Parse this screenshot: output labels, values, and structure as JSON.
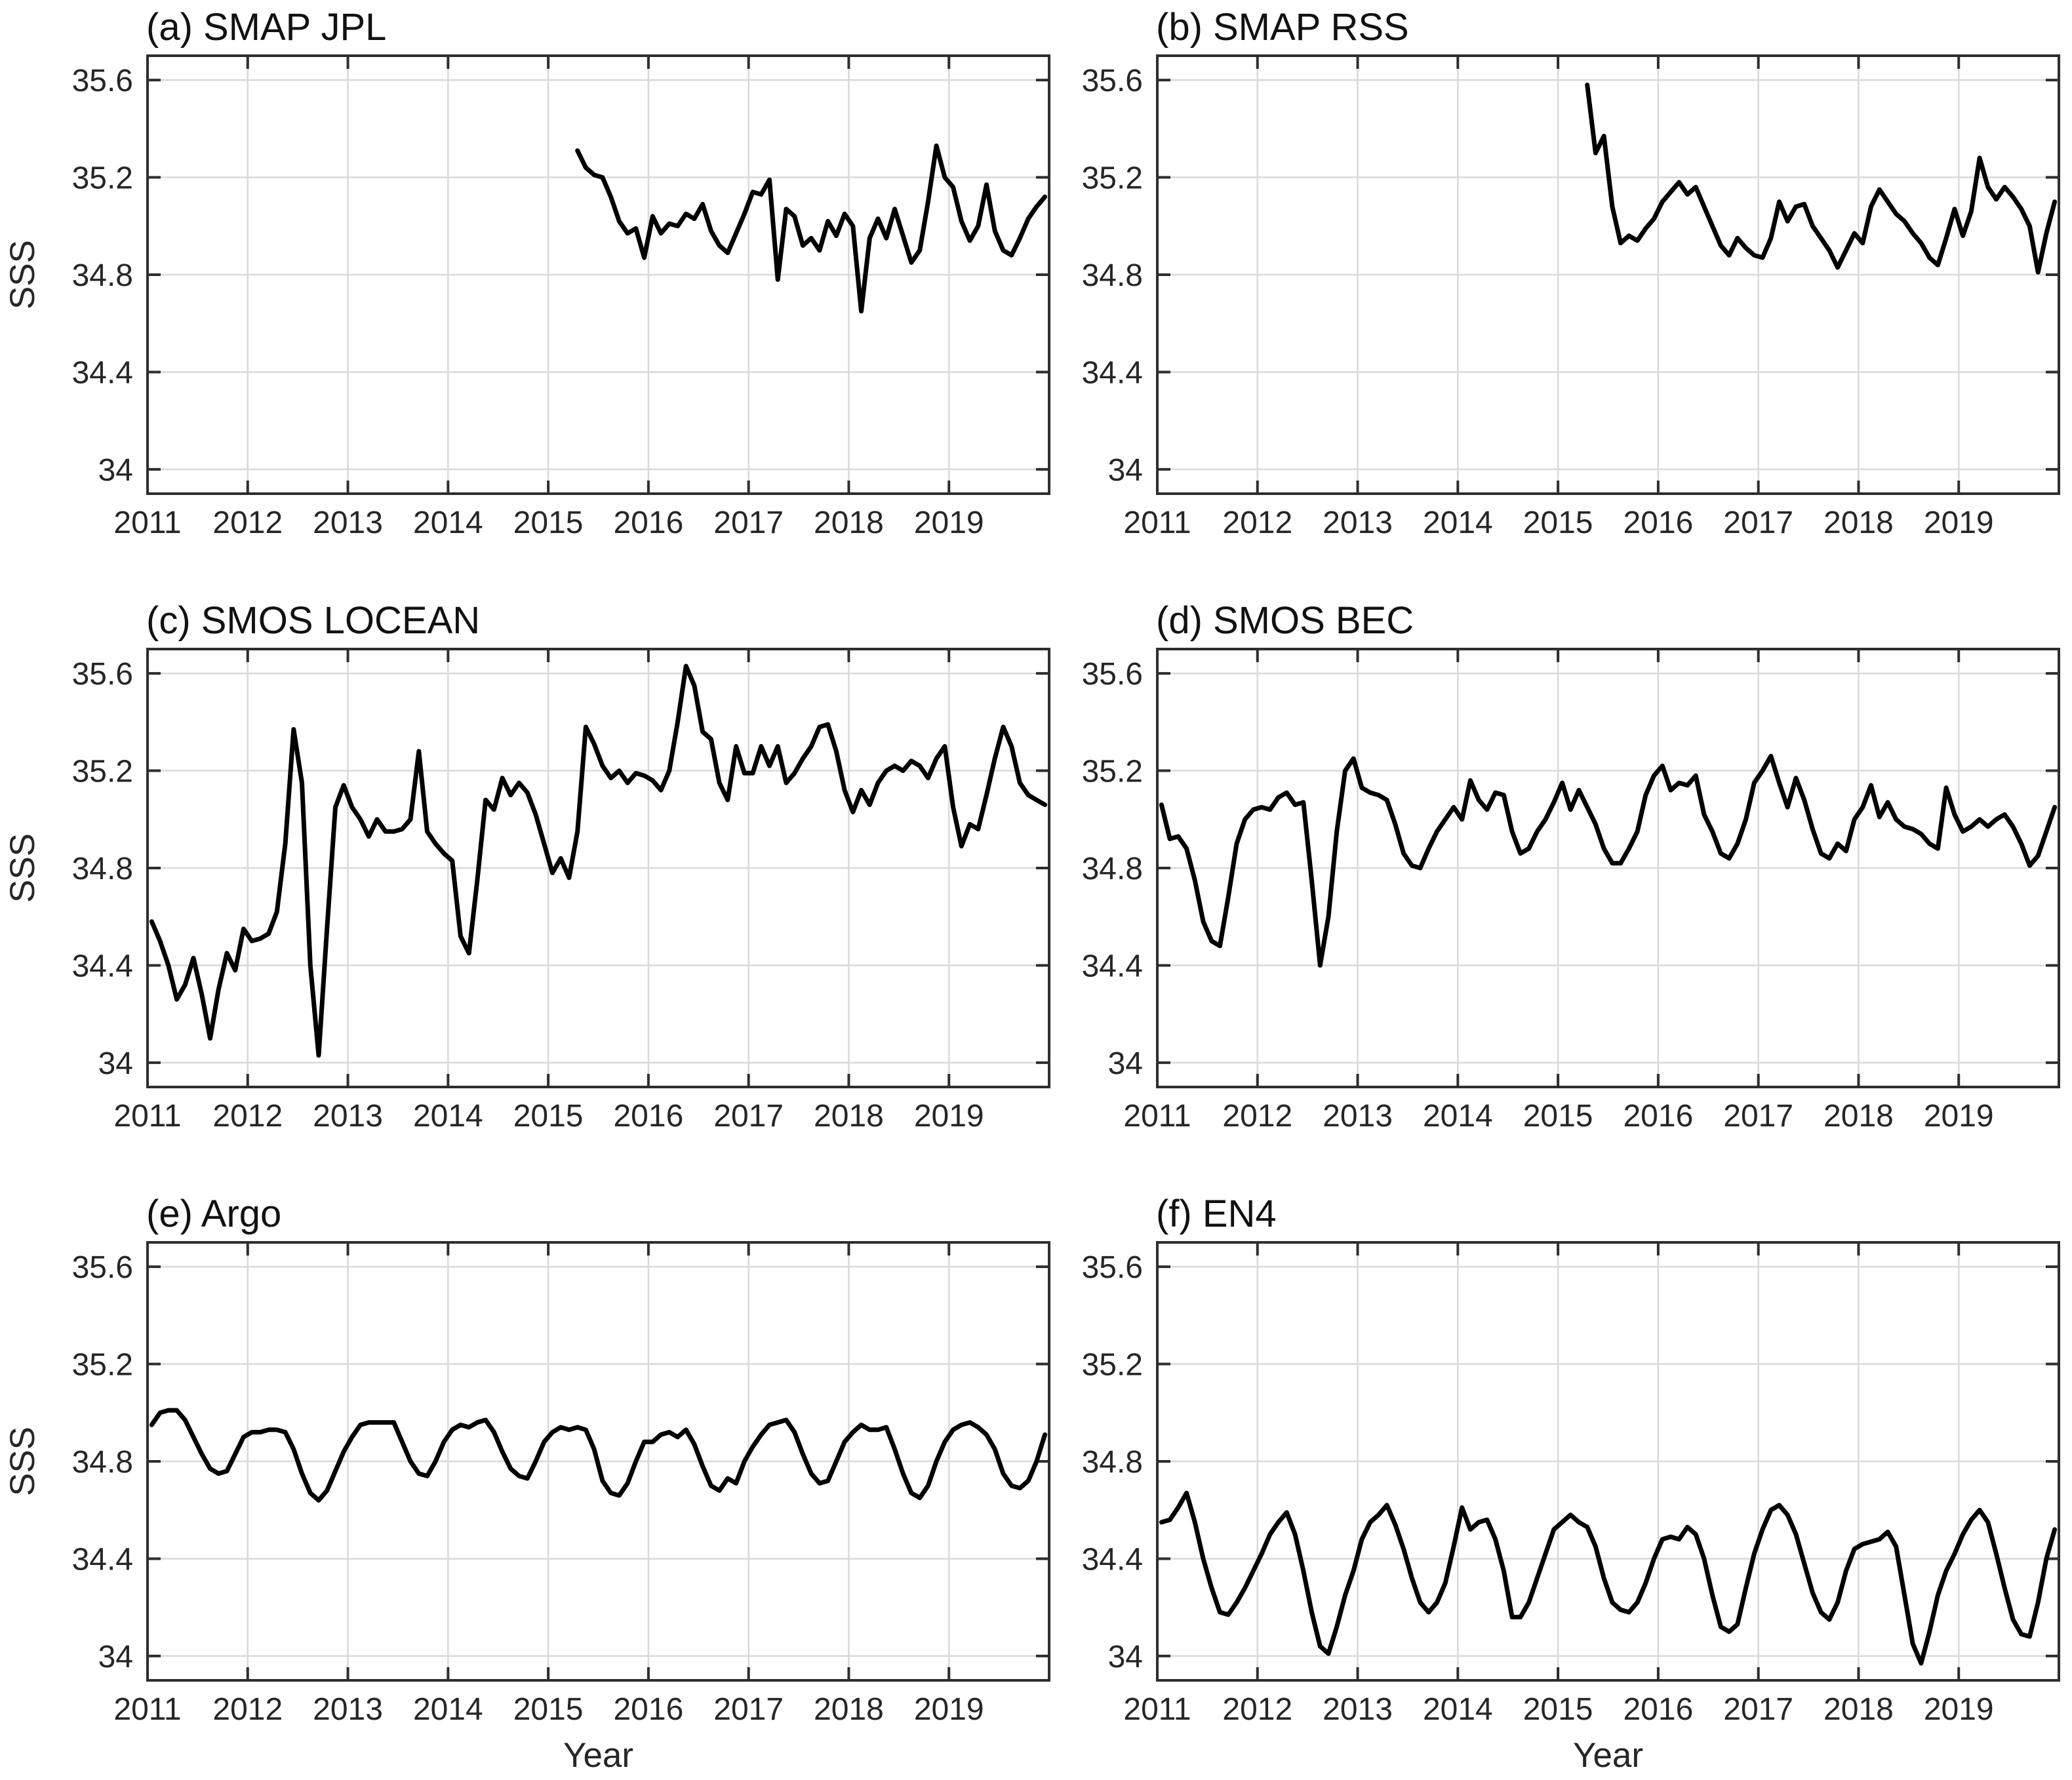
{
  "figure": {
    "background": "#ffffff",
    "line_color": "#000000",
    "grid_color": "#d9d9d9",
    "axis_color": "#2e2e2e",
    "text_color": "#262626"
  },
  "axes": {
    "ylabel": "SSS",
    "xlabel": "Year",
    "grid": true,
    "xlim": [
      2011,
      2020
    ],
    "ylim": [
      33.9,
      35.7
    ],
    "xticks": [
      2011,
      2012,
      2013,
      2014,
      2015,
      2016,
      2017,
      2018,
      2019
    ],
    "xtick_labels": [
      "2011",
      "2012",
      "2013",
      "2014",
      "2015",
      "2016",
      "2017",
      "2018",
      "2019"
    ],
    "yticks": [
      34,
      34.4,
      34.8,
      35.2,
      35.6
    ],
    "ytick_labels": [
      "34",
      "34.4",
      "34.8",
      "35.2",
      "35.6"
    ]
  },
  "chart_data": [
    {
      "type": "line",
      "panel": "a",
      "title": "(a) SMAP JPL",
      "x_start": 2015.2917,
      "x_step": 0.0833333,
      "y": [
        35.31,
        35.24,
        35.21,
        35.2,
        35.12,
        35.02,
        34.97,
        34.99,
        34.87,
        35.04,
        34.97,
        35.01,
        35.0,
        35.05,
        35.03,
        35.09,
        34.98,
        34.92,
        34.89,
        34.97,
        35.05,
        35.14,
        35.13,
        35.19,
        34.78,
        35.07,
        35.04,
        34.92,
        34.95,
        34.9,
        35.02,
        34.96,
        35.05,
        35.0,
        34.65,
        34.95,
        35.03,
        34.95,
        35.07,
        34.96,
        34.85,
        34.9,
        35.1,
        35.33,
        35.2,
        35.16,
        35.02,
        34.94,
        35.0,
        35.17,
        34.98,
        34.9,
        34.88,
        34.95,
        35.03,
        35.08,
        35.12
      ]
    },
    {
      "type": "line",
      "panel": "b",
      "title": "(b) SMAP RSS",
      "x_start": 2015.2917,
      "x_step": 0.0833333,
      "y": [
        35.58,
        35.3,
        35.37,
        35.08,
        34.93,
        34.96,
        34.94,
        34.99,
        35.03,
        35.1,
        35.14,
        35.18,
        35.13,
        35.16,
        35.08,
        35.0,
        34.92,
        34.88,
        34.95,
        34.91,
        34.88,
        34.87,
        34.95,
        35.1,
        35.02,
        35.08,
        35.09,
        35.0,
        34.95,
        34.9,
        34.83,
        34.9,
        34.97,
        34.93,
        35.08,
        35.15,
        35.1,
        35.05,
        35.02,
        34.97,
        34.93,
        34.87,
        34.84,
        34.95,
        35.07,
        34.96,
        35.06,
        35.28,
        35.16,
        35.11,
        35.16,
        35.12,
        35.07,
        35.0,
        34.81,
        34.97,
        35.1
      ]
    },
    {
      "type": "line",
      "panel": "c",
      "title": "(c) SMOS LOCEAN",
      "x_start": 2011.0417,
      "x_step": 0.0833333,
      "y": [
        34.58,
        34.5,
        34.4,
        34.26,
        34.32,
        34.43,
        34.28,
        34.1,
        34.3,
        34.45,
        34.38,
        34.55,
        34.5,
        34.51,
        34.53,
        34.62,
        34.9,
        35.37,
        35.15,
        34.4,
        34.03,
        34.55,
        35.05,
        35.14,
        35.05,
        35.0,
        34.93,
        35.0,
        34.95,
        34.95,
        34.96,
        35.0,
        35.28,
        34.95,
        34.9,
        34.86,
        34.83,
        34.52,
        34.45,
        34.75,
        35.08,
        35.04,
        35.17,
        35.1,
        35.15,
        35.11,
        35.02,
        34.9,
        34.78,
        34.84,
        34.76,
        34.95,
        35.38,
        35.31,
        35.22,
        35.17,
        35.2,
        35.15,
        35.19,
        35.18,
        35.16,
        35.12,
        35.2,
        35.4,
        35.63,
        35.55,
        35.36,
        35.33,
        35.15,
        35.08,
        35.3,
        35.19,
        35.19,
        35.3,
        35.22,
        35.3,
        35.15,
        35.19,
        35.25,
        35.3,
        35.38,
        35.39,
        35.28,
        35.12,
        35.03,
        35.12,
        35.06,
        35.15,
        35.2,
        35.22,
        35.2,
        35.24,
        35.22,
        35.17,
        35.25,
        35.3,
        35.05,
        34.89,
        34.98,
        34.96,
        35.1,
        35.25,
        35.38,
        35.3,
        35.15,
        35.1,
        35.08,
        35.06
      ]
    },
    {
      "type": "line",
      "panel": "d",
      "title": "(d) SMOS BEC",
      "x_start": 2011.0417,
      "x_step": 0.0833333,
      "y": [
        35.06,
        34.92,
        34.93,
        34.88,
        34.75,
        34.58,
        34.5,
        34.48,
        34.68,
        34.9,
        35.0,
        35.04,
        35.05,
        35.04,
        35.09,
        35.11,
        35.06,
        35.07,
        34.75,
        34.4,
        34.6,
        34.95,
        35.2,
        35.25,
        35.13,
        35.11,
        35.1,
        35.08,
        34.98,
        34.86,
        34.81,
        34.8,
        34.88,
        34.95,
        35.0,
        35.05,
        35.0,
        35.16,
        35.08,
        35.04,
        35.11,
        35.1,
        34.95,
        34.86,
        34.88,
        34.95,
        35.0,
        35.07,
        35.15,
        35.04,
        35.12,
        35.05,
        34.98,
        34.88,
        34.82,
        34.82,
        34.88,
        34.95,
        35.1,
        35.18,
        35.22,
        35.12,
        35.15,
        35.14,
        35.18,
        35.02,
        34.95,
        34.86,
        34.84,
        34.9,
        35.0,
        35.15,
        35.2,
        35.26,
        35.15,
        35.05,
        35.17,
        35.08,
        34.96,
        34.86,
        34.84,
        34.9,
        34.87,
        35.0,
        35.05,
        35.14,
        35.01,
        35.07,
        35.0,
        34.97,
        34.96,
        34.94,
        34.9,
        34.88,
        35.13,
        35.02,
        34.95,
        34.97,
        35.0,
        34.97,
        35.0,
        35.02,
        34.97,
        34.9,
        34.81,
        34.85,
        34.95,
        35.05
      ]
    },
    {
      "type": "line",
      "panel": "e",
      "title": "(e) Argo",
      "x_start": 2011.0417,
      "x_step": 0.0833333,
      "y": [
        34.95,
        35.0,
        35.01,
        35.01,
        34.97,
        34.9,
        34.83,
        34.77,
        34.75,
        34.76,
        34.83,
        34.9,
        34.92,
        34.92,
        34.93,
        34.93,
        34.92,
        34.85,
        34.75,
        34.67,
        34.64,
        34.68,
        34.76,
        34.84,
        34.9,
        34.95,
        34.96,
        34.96,
        34.96,
        34.96,
        34.88,
        34.8,
        34.75,
        34.74,
        34.8,
        34.88,
        34.93,
        34.95,
        34.94,
        34.96,
        34.97,
        34.92,
        34.84,
        34.77,
        34.74,
        34.73,
        34.8,
        34.88,
        34.92,
        34.94,
        34.93,
        34.94,
        34.93,
        34.85,
        34.72,
        34.67,
        34.66,
        34.71,
        34.8,
        34.88,
        34.88,
        34.91,
        34.92,
        34.9,
        34.93,
        34.87,
        34.78,
        34.7,
        34.68,
        34.73,
        34.71,
        34.8,
        34.86,
        34.91,
        34.95,
        34.96,
        34.97,
        34.92,
        34.83,
        34.75,
        34.71,
        34.72,
        34.8,
        34.88,
        34.92,
        34.95,
        34.93,
        34.93,
        34.94,
        34.85,
        34.75,
        34.67,
        34.65,
        34.7,
        34.8,
        34.88,
        34.93,
        34.95,
        34.96,
        34.94,
        34.91,
        34.85,
        34.75,
        34.7,
        34.69,
        34.72,
        34.8,
        34.91
      ]
    },
    {
      "type": "line",
      "panel": "f",
      "title": "(f) EN4",
      "x_start": 2011.0417,
      "x_step": 0.0833333,
      "y": [
        34.55,
        34.56,
        34.61,
        34.67,
        34.55,
        34.4,
        34.28,
        34.18,
        34.17,
        34.22,
        34.28,
        34.35,
        34.42,
        34.5,
        34.55,
        34.59,
        34.5,
        34.35,
        34.18,
        34.04,
        34.01,
        34.12,
        34.25,
        34.35,
        34.48,
        34.55,
        34.58,
        34.62,
        34.54,
        34.44,
        34.32,
        34.22,
        34.18,
        34.22,
        34.3,
        34.45,
        34.61,
        34.52,
        34.55,
        34.56,
        34.48,
        34.35,
        34.16,
        34.16,
        34.22,
        34.32,
        34.42,
        34.52,
        34.55,
        34.58,
        34.55,
        34.53,
        34.45,
        34.32,
        34.22,
        34.19,
        34.18,
        34.22,
        34.3,
        34.4,
        34.48,
        34.49,
        34.48,
        34.53,
        34.5,
        34.4,
        34.25,
        34.12,
        34.1,
        34.13,
        34.28,
        34.42,
        34.52,
        34.6,
        34.62,
        34.58,
        34.5,
        34.38,
        34.26,
        34.18,
        34.15,
        34.22,
        34.35,
        34.44,
        34.46,
        34.47,
        34.48,
        34.51,
        34.45,
        34.25,
        34.05,
        33.97,
        34.1,
        34.25,
        34.35,
        34.42,
        34.5,
        34.56,
        34.6,
        34.55,
        34.42,
        34.28,
        34.15,
        34.09,
        34.08,
        34.22,
        34.4,
        34.52
      ]
    }
  ]
}
